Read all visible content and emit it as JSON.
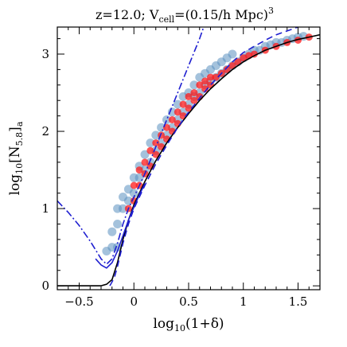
{
  "chart_data": {
    "type": "scatter",
    "title_parts": {
      "prefix": "z=12.0; V",
      "sub": "cell",
      "middle": "=(0.15/h Mpc)",
      "sup": "3"
    },
    "xlabel_parts": {
      "pre": "log",
      "sub": "10",
      "post": "(1+δ)"
    },
    "ylabel_parts": {
      "pre": "log",
      "sub": "10",
      "mid": "[N",
      "sub2": "5.8",
      "post": "]",
      "sub3": "a"
    },
    "xlim": [
      -0.7,
      1.7
    ],
    "ylim": [
      -0.05,
      3.35
    ],
    "x_ticks": [
      {
        "value": -0.5,
        "label": "−0.5"
      },
      {
        "value": 0,
        "label": "0"
      },
      {
        "value": 0.5,
        "label": "0.5"
      },
      {
        "value": 1,
        "label": "1"
      },
      {
        "value": 1.5,
        "label": "1.5"
      }
    ],
    "y_ticks": [
      {
        "value": 0,
        "label": "0"
      },
      {
        "value": 1,
        "label": "1"
      },
      {
        "value": 2,
        "label": "2"
      },
      {
        "value": 3,
        "label": "3"
      }
    ],
    "grid": false,
    "colors": {
      "scatter_outer": "#5a8fc0",
      "scatter_inner": "#ff1a1a",
      "fit_curve": "#000000",
      "model_curves": "#1f1fd0"
    },
    "series": [
      {
        "kind": "scatter",
        "color": "#5a8fc0",
        "points": [
          [
            -0.25,
            0.45
          ],
          [
            -0.2,
            0.5
          ],
          [
            -0.2,
            0.7
          ],
          [
            -0.15,
            0.5
          ],
          [
            -0.15,
            0.8
          ],
          [
            -0.15,
            1.0
          ],
          [
            -0.1,
            1.0
          ],
          [
            -0.1,
            1.15
          ],
          [
            -0.05,
            1.1
          ],
          [
            -0.05,
            1.25
          ],
          [
            0.0,
            1.2
          ],
          [
            0.0,
            1.4
          ],
          [
            0.05,
            1.4
          ],
          [
            0.05,
            1.55
          ],
          [
            0.1,
            1.5
          ],
          [
            0.1,
            1.7
          ],
          [
            0.15,
            1.6
          ],
          [
            0.15,
            1.85
          ],
          [
            0.2,
            1.75
          ],
          [
            0.2,
            1.95
          ],
          [
            0.25,
            1.85
          ],
          [
            0.25,
            2.05
          ],
          [
            0.3,
            1.95
          ],
          [
            0.3,
            2.15
          ],
          [
            0.35,
            2.05
          ],
          [
            0.35,
            2.25
          ],
          [
            0.4,
            2.15
          ],
          [
            0.4,
            2.35
          ],
          [
            0.45,
            2.25
          ],
          [
            0.45,
            2.45
          ],
          [
            0.5,
            2.35
          ],
          [
            0.5,
            2.5
          ],
          [
            0.55,
            2.45
          ],
          [
            0.55,
            2.6
          ],
          [
            0.6,
            2.5
          ],
          [
            0.6,
            2.7
          ],
          [
            0.65,
            2.6
          ],
          [
            0.65,
            2.75
          ],
          [
            0.7,
            2.65
          ],
          [
            0.7,
            2.8
          ],
          [
            0.75,
            2.7
          ],
          [
            0.75,
            2.85
          ],
          [
            0.8,
            2.75
          ],
          [
            0.8,
            2.9
          ],
          [
            0.85,
            2.8
          ],
          [
            0.85,
            2.95
          ],
          [
            0.9,
            2.85
          ],
          [
            0.9,
            3.0
          ],
          [
            0.95,
            2.9
          ],
          [
            1.0,
            2.95
          ],
          [
            1.05,
            3.0
          ],
          [
            1.1,
            3.05
          ],
          [
            1.15,
            3.05
          ],
          [
            1.2,
            3.1
          ],
          [
            1.25,
            3.12
          ],
          [
            1.3,
            3.15
          ],
          [
            1.35,
            3.15
          ],
          [
            1.4,
            3.18
          ],
          [
            1.45,
            3.2
          ],
          [
            1.5,
            3.22
          ],
          [
            1.55,
            3.23
          ]
        ]
      },
      {
        "kind": "scatter",
        "color": "#ff1a1a",
        "points": [
          [
            -0.05,
            1.0
          ],
          [
            0.0,
            1.1
          ],
          [
            0.0,
            1.3
          ],
          [
            0.05,
            1.3
          ],
          [
            0.05,
            1.5
          ],
          [
            0.1,
            1.45
          ],
          [
            0.1,
            1.6
          ],
          [
            0.15,
            1.55
          ],
          [
            0.15,
            1.75
          ],
          [
            0.2,
            1.7
          ],
          [
            0.2,
            1.85
          ],
          [
            0.25,
            1.8
          ],
          [
            0.25,
            1.95
          ],
          [
            0.3,
            1.9
          ],
          [
            0.3,
            2.05
          ],
          [
            0.35,
            2.0
          ],
          [
            0.35,
            2.15
          ],
          [
            0.4,
            2.1
          ],
          [
            0.4,
            2.25
          ],
          [
            0.45,
            2.2
          ],
          [
            0.45,
            2.35
          ],
          [
            0.5,
            2.3
          ],
          [
            0.5,
            2.45
          ],
          [
            0.55,
            2.4
          ],
          [
            0.55,
            2.5
          ],
          [
            0.6,
            2.45
          ],
          [
            0.6,
            2.6
          ],
          [
            0.65,
            2.55
          ],
          [
            0.65,
            2.65
          ],
          [
            0.7,
            2.6
          ],
          [
            0.7,
            2.7
          ],
          [
            0.75,
            2.7
          ],
          [
            0.8,
            2.75
          ],
          [
            0.85,
            2.8
          ],
          [
            0.9,
            2.85
          ],
          [
            0.95,
            2.9
          ],
          [
            1.0,
            2.95
          ],
          [
            1.05,
            2.98
          ],
          [
            1.1,
            3.0
          ],
          [
            1.2,
            3.05
          ],
          [
            1.3,
            3.1
          ],
          [
            1.4,
            3.15
          ],
          [
            1.5,
            3.18
          ],
          [
            1.6,
            3.22
          ]
        ]
      },
      {
        "kind": "line",
        "color": "#000000",
        "style": "solid",
        "x": [
          -0.7,
          -0.3,
          -0.25,
          -0.2,
          -0.15,
          -0.1,
          -0.05,
          0.0,
          0.05,
          0.1,
          0.2,
          0.3,
          0.4,
          0.5,
          0.6,
          0.7,
          0.8,
          0.9,
          1.0,
          1.1,
          1.2,
          1.3,
          1.4,
          1.5,
          1.6,
          1.7
        ],
        "y": [
          0.0,
          0.0,
          0.02,
          0.08,
          0.3,
          0.6,
          0.85,
          1.05,
          1.2,
          1.35,
          1.62,
          1.85,
          2.05,
          2.23,
          2.4,
          2.55,
          2.68,
          2.8,
          2.9,
          2.98,
          3.05,
          3.1,
          3.15,
          3.19,
          3.22,
          3.25
        ]
      },
      {
        "kind": "line",
        "color": "#1f1fd0",
        "style": "dash-dot",
        "x": [
          -0.7,
          -0.6,
          -0.5,
          -0.4,
          -0.3,
          -0.25,
          -0.2,
          -0.15,
          -0.1,
          -0.05,
          0.0,
          0.1,
          0.2,
          0.3,
          0.4,
          0.5,
          0.6,
          0.65
        ],
        "y": [
          1.1,
          0.95,
          0.78,
          0.58,
          0.35,
          0.28,
          0.35,
          0.55,
          0.8,
          1.0,
          1.15,
          1.45,
          1.8,
          2.15,
          2.5,
          2.85,
          3.2,
          3.4
        ]
      },
      {
        "kind": "line",
        "color": "#1f1fd0",
        "style": "dashed",
        "x": [
          -0.22,
          -0.18,
          -0.15,
          -0.1,
          -0.05,
          0.0,
          0.1,
          0.2,
          0.3,
          0.4,
          0.5,
          0.6,
          0.7,
          0.8,
          0.9,
          1.0,
          1.1,
          1.2,
          1.3,
          1.4,
          1.5,
          1.6,
          1.7
        ],
        "y": [
          0.0,
          0.1,
          0.25,
          0.55,
          0.8,
          1.0,
          1.3,
          1.58,
          1.82,
          2.05,
          2.25,
          2.43,
          2.6,
          2.75,
          2.9,
          3.02,
          3.1,
          3.18,
          3.25,
          3.3,
          3.35,
          3.4,
          3.45
        ]
      },
      {
        "kind": "line",
        "color": "#1f1fd0",
        "style": "solid",
        "x": [
          -0.35,
          -0.3,
          -0.25,
          -0.2,
          -0.15,
          -0.1,
          -0.05,
          0.0,
          0.05,
          0.1
        ],
        "y": [
          0.35,
          0.27,
          0.23,
          0.3,
          0.45,
          0.65,
          0.85,
          1.02,
          1.18,
          1.32
        ]
      }
    ]
  }
}
